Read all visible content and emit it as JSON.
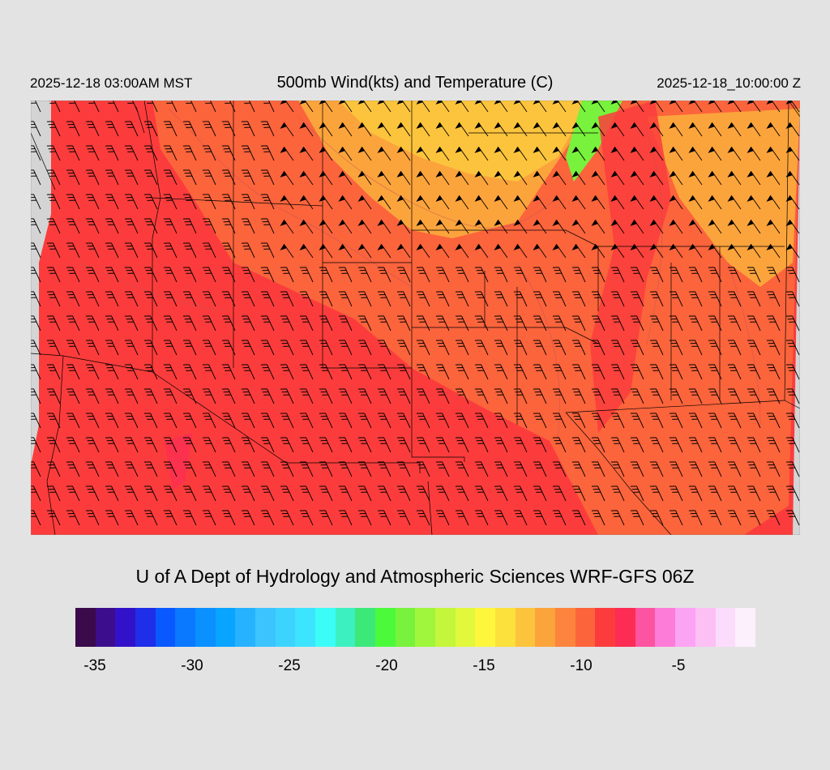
{
  "header": {
    "valid_local": "2025-12-18 03:00AM MST",
    "title": "500mb Wind(kts) and Temperature (C)",
    "valid_utc": "2025-12-18_10:00:00 Z"
  },
  "credit": "U of A Dept of Hydrology and Atmospheric Sciences WRF-GFS 06Z",
  "colorbar": {
    "colors": [
      "#3a0a4a",
      "#3c0e8c",
      "#3212c8",
      "#1f2ee8",
      "#0a58ff",
      "#0a78ff",
      "#0a90ff",
      "#08a4ff",
      "#26b2ff",
      "#3cc4ff",
      "#3cd4ff",
      "#3ce4ff",
      "#3cfcf8",
      "#3cf0c0",
      "#3ce878",
      "#4cfa3c",
      "#78f23c",
      "#a0f63c",
      "#c4f63c",
      "#e2f83c",
      "#fef63c",
      "#fce03c",
      "#fcc43c",
      "#fca43c",
      "#fc843c",
      "#fc643c",
      "#fc3c3c",
      "#fc2c54",
      "#fc54a0",
      "#fc7cd8",
      "#fca4f4",
      "#fcc0f4",
      "#fcdcfc",
      "#fcf0fc"
    ],
    "tick_labels": [
      "-35",
      "-30",
      "-25",
      "-20",
      "-15",
      "-10",
      "-5"
    ]
  },
  "map": {
    "background": "#d4d4d4",
    "warm_field_color": "#fc3c3c",
    "mid_field_color": "#fc643c",
    "cool_field_color": "#fca43c",
    "coldest_color": "#78f23c",
    "barb_color": "#000000",
    "units": "kts"
  }
}
